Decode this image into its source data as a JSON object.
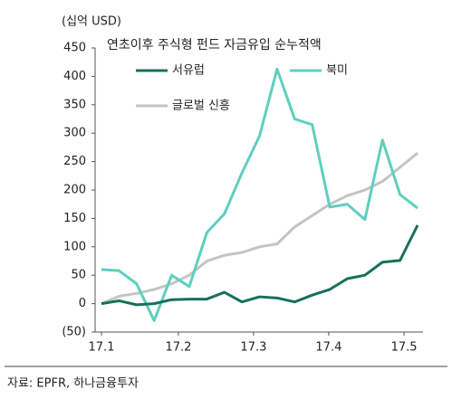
{
  "chart_data": {
    "type": "line",
    "title": "연초이후 주식형 펀드 자금유입 순누적액",
    "unit_label": "(십억 USD)",
    "source": "자료: EPFR, 하나금융투자",
    "xlim": [
      0,
      18
    ],
    "xticks": [
      {
        "value": 0,
        "label": "17.1"
      },
      {
        "value": 4.38,
        "label": "17.2"
      },
      {
        "value": 8.66,
        "label": "17.3"
      },
      {
        "value": 12.94,
        "label": "17.4"
      },
      {
        "value": 17.23,
        "label": "17.5"
      }
    ],
    "ylim": [
      -50,
      450
    ],
    "yticks": [
      {
        "value": -50,
        "label": "(50)"
      },
      0,
      50,
      100,
      150,
      200,
      250,
      300,
      350,
      400,
      450
    ],
    "series": [
      {
        "name": "서유럽",
        "color": "#17705c",
        "values": [
          0,
          5,
          -2,
          0,
          7,
          8,
          8,
          20,
          3,
          12,
          10,
          3,
          15,
          25,
          44,
          50,
          73,
          76,
          138
        ]
      },
      {
        "name": "북미",
        "color": "#5fcfbf",
        "values": [
          60,
          58,
          35,
          -30,
          50,
          30,
          125,
          158,
          230,
          295,
          413,
          325,
          315,
          170,
          175,
          148,
          288,
          192,
          168
        ]
      },
      {
        "name": "글로벌 신흥",
        "color": "#c4c4c4",
        "values": [
          0,
          13,
          18,
          25,
          35,
          50,
          75,
          85,
          90,
          100,
          105,
          135,
          155,
          175,
          190,
          200,
          215,
          240,
          265
        ]
      }
    ]
  }
}
